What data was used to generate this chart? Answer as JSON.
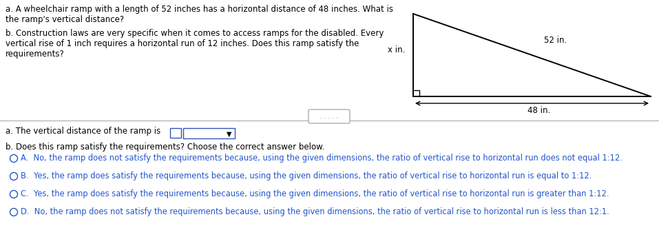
{
  "bg_color": "#ffffff",
  "text_color": "#000000",
  "blue_color": "#2255cc",
  "question_a": "a. A wheelchair ramp with a length of 52 inches has a horizontal distance of 48 inches. What is\nthe ramp's vertical distance?",
  "question_b": "b. Construction laws are very specific when it comes to access ramps for the disabled. Every\nvertical rise of 1 inch requires a horizontal run of 12 inches. Does this ramp satisfy the\nrequirements?",
  "answer_a_label": "a. The vertical distance of the ramp is",
  "answer_b_label": "b. Does this ramp satisfy the requirements? Choose the correct answer below.",
  "option_a": "A.  No, the ramp does not satisfy the requirements because, using the given dimensions, the ratio of vertical rise to horizontal run does not equal 1:12.",
  "option_b": "B.  Yes, the ramp does satisfy the requirements because, using the given dimensions, the ratio of vertical rise to horizontal run is equal to 1:12.",
  "option_c": "C.  Yes, the ramp does satisfy the requirements because, using the given dimensions, the ratio of vertical rise to horizontal run is greater than 1:12.",
  "option_d": "D.  No, the ramp does not satisfy the requirements because, using the given dimensions, the ratio of vertical rise to horizontal run is less than 12:1.",
  "ramp_label": "52 in.",
  "vertical_label": "x in.",
  "horizontal_label": "48 in.",
  "font_size_main": 8.5,
  "font_size_options": 8.3
}
